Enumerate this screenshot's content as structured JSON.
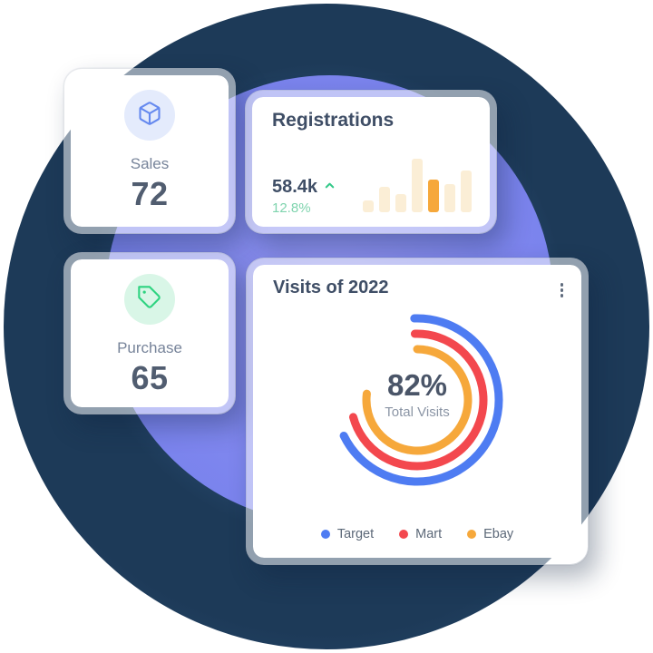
{
  "colors": {
    "navy_circle": "#1d3a58",
    "violet_circle": "#7a83ed",
    "card_frame": "rgba(255,255,255,0.52)",
    "title_text": "#3f4e66",
    "value_text": "#515d70",
    "muted_text": "#77849a",
    "trend_green": "#35c98a",
    "change_green": "#7fd4ae",
    "bar_default": "#fbeed6",
    "bar_highlight": "#f6a83b",
    "sales_icon": "#6589ef",
    "sales_icon_bg": "#e4ebfc",
    "purchase_icon": "#2ed380",
    "purchase_icon_bg": "#d9f6e7",
    "kebab_dot": "#5f6b7d"
  },
  "cards": {
    "sales": {
      "label": "Sales",
      "value": "72",
      "icon": "cube-icon"
    },
    "registrations": {
      "title": "Registrations",
      "value": "58.4k",
      "trend": "up",
      "change": "12.8%",
      "bars": [
        13,
        28,
        20,
        59,
        36,
        31,
        46
      ],
      "highlight_index": 4
    },
    "purchase": {
      "label": "Purchase",
      "value": "65",
      "icon": "tag-icon"
    },
    "visits": {
      "title": "Visits of 2022",
      "center_value": "82%",
      "center_label": "Total Visits",
      "ring_stroke_width": 9,
      "rings": [
        {
          "name": "Target",
          "color": "#4e7cf2",
          "radius": 90,
          "start_deg": -2,
          "sweep_deg": 246
        },
        {
          "name": "Mart",
          "color": "#f3484e",
          "radius": 73,
          "start_deg": -2,
          "sweep_deg": 257
        },
        {
          "name": "Ebay",
          "color": "#f6a83b",
          "radius": 56,
          "start_deg": 0,
          "sweep_deg": 277
        }
      ],
      "legend": [
        {
          "label": "Target",
          "color": "#4e7cf2"
        },
        {
          "label": "Mart",
          "color": "#f3484e"
        },
        {
          "label": "Ebay",
          "color": "#f6a83b"
        }
      ]
    }
  },
  "chart_data": [
    {
      "type": "bar",
      "title": "Registrations",
      "categories": [
        "1",
        "2",
        "3",
        "4",
        "5",
        "6",
        "7"
      ],
      "values": [
        22,
        47,
        34,
        100,
        61,
        53,
        78
      ],
      "units": "relative height, % of tallest bar (no axis labels shown)",
      "highlight_index": 4,
      "annotations": {
        "headline_value": "58.4k",
        "change": "12.8%",
        "trend": "up"
      },
      "grid": false,
      "legend_position": "none"
    },
    {
      "type": "donut-arcs",
      "title": "Visits of 2022",
      "series": [
        {
          "name": "Target",
          "sweep_deg": 246,
          "arc_fraction": 0.68,
          "color": "#4e7cf2",
          "ring": "outer"
        },
        {
          "name": "Mart",
          "sweep_deg": 257,
          "arc_fraction": 0.71,
          "color": "#f3484e",
          "ring": "middle"
        },
        {
          "name": "Ebay",
          "sweep_deg": 277,
          "arc_fraction": 0.77,
          "color": "#f6a83b",
          "ring": "inner"
        }
      ],
      "center_value": "82%",
      "center_label": "Total Visits",
      "legend_position": "bottom"
    }
  ]
}
